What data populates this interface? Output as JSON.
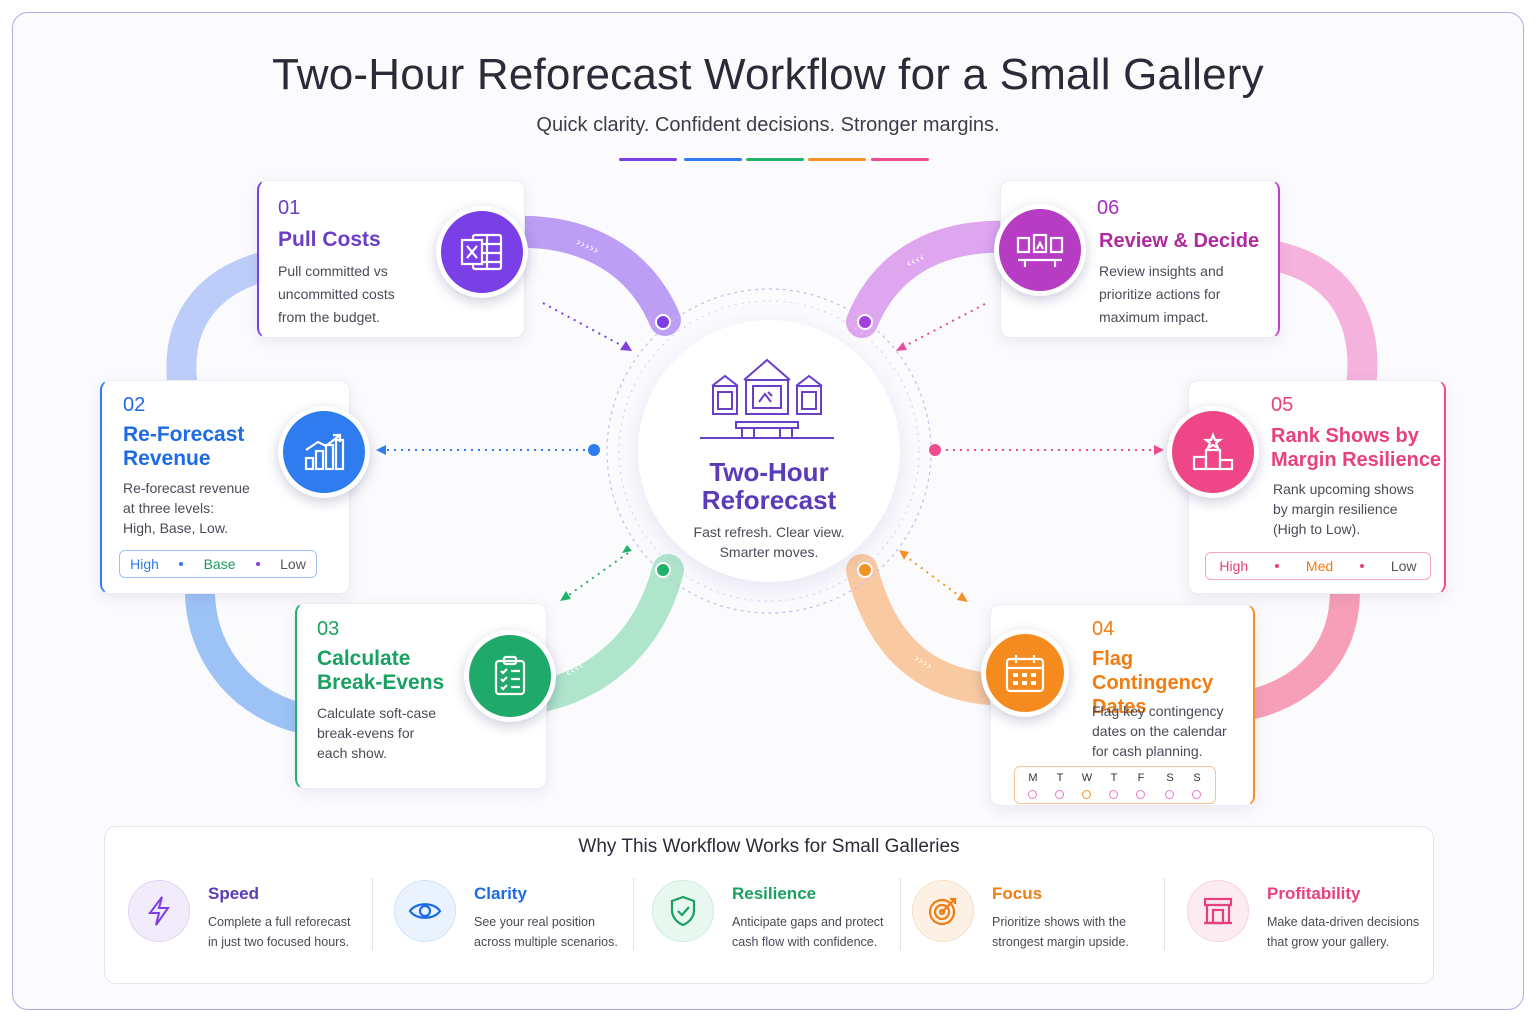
{
  "title": "Two-Hour Reforecast Workflow for a Small Gallery",
  "subtitle": "Quick clarity. Confident decisions. Stronger margins.",
  "colors": {
    "purple": "#7b3fe4",
    "blue": "#2f7cf0",
    "green": "#20b26b",
    "orange": "#f39325",
    "pink": "#ee4c8e",
    "magenta": "#c23cd2"
  },
  "hub": {
    "title_line1": "Two-Hour",
    "title_line2": "Reforecast",
    "sub_line1": "Fast refresh. Clear view.",
    "sub_line2": "Smarter moves.",
    "icon": "gallery-icon"
  },
  "steps": [
    {
      "num": "01",
      "title_line1": "Pull Costs",
      "desc_line1": "Pull committed vs",
      "desc_line2": "uncommitted costs",
      "desc_line3": "from the budget.",
      "icon": "spreadsheet-icon"
    },
    {
      "num": "02",
      "title_line1": "Re-Forecast",
      "title_line2": "Revenue",
      "desc_line1": "Re-forecast revenue",
      "desc_line2": "at three levels:",
      "desc_line3": "High, Base, Low.",
      "icon": "bar-chart-icon",
      "levels": [
        "High",
        "Base",
        "Low"
      ]
    },
    {
      "num": "03",
      "title_line1": "Calculate",
      "title_line2": "Break-Evens",
      "desc_line1": "Calculate soft-case",
      "desc_line2": "break-evens for",
      "desc_line3": "each show.",
      "icon": "checklist-icon"
    },
    {
      "num": "04",
      "title_line1": "Flag Contingency",
      "title_line2": "Dates",
      "desc_line1": "Flag key contingency",
      "desc_line2": "dates on the calendar",
      "desc_line3": "for cash planning.",
      "icon": "calendar-icon",
      "days": [
        "M",
        "T",
        "W",
        "T",
        "F",
        "S",
        "S"
      ]
    },
    {
      "num": "05",
      "title_line1": "Rank Shows by",
      "title_line2": "Margin Resilience",
      "desc_line1": "Rank upcoming shows",
      "desc_line2": "by margin resilience",
      "desc_line3": "(High to Low).",
      "icon": "podium-icon",
      "levels": [
        "High",
        "Med",
        "Low"
      ]
    },
    {
      "num": "06",
      "title_line1": "Review & Decide",
      "desc_line1": "Review insights and",
      "desc_line2": "prioritize actions for",
      "desc_line3": "maximum impact.",
      "icon": "gallery-wall-icon"
    }
  ],
  "why": {
    "title": "Why This Workflow Works for Small Galleries",
    "items": [
      {
        "title": "Speed",
        "desc_line1": "Complete a full reforecast",
        "desc_line2": "in just two focused hours.",
        "icon": "lightning-icon"
      },
      {
        "title": "Clarity",
        "desc_line1": "See your real position",
        "desc_line2": "across multiple scenarios.",
        "icon": "eye-icon"
      },
      {
        "title": "Resilience",
        "desc_line1": "Anticipate gaps and protect",
        "desc_line2": "cash flow with confidence.",
        "icon": "shield-check-icon"
      },
      {
        "title": "Focus",
        "desc_line1": "Prioritize shows with the",
        "desc_line2": "strongest margin upside.",
        "icon": "target-icon"
      },
      {
        "title": "Profitability",
        "desc_line1": "Make data-driven decisions",
        "desc_line2": "that grow your gallery.",
        "icon": "storefront-icon"
      }
    ]
  }
}
